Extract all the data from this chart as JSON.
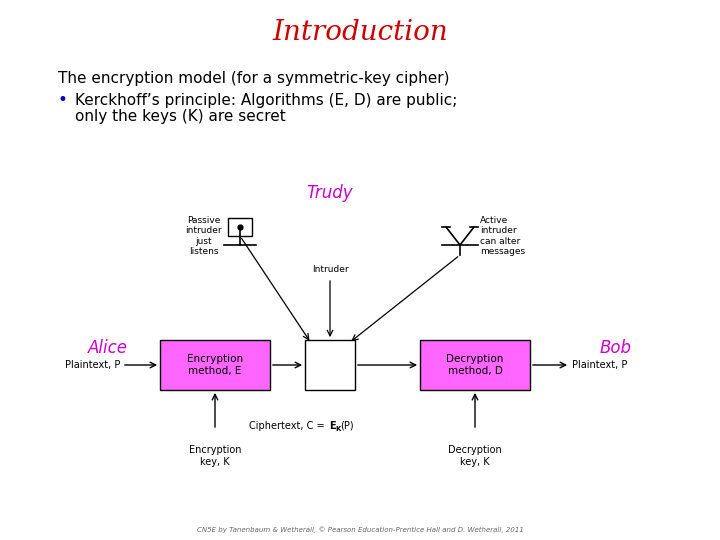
{
  "title": "Introduction",
  "title_color": "#cc0000",
  "title_fontsize": 20,
  "title_font": "serif",
  "bg_color": "#ffffff",
  "text_line1": "The encryption model (for a symmetric-key cipher)",
  "text_bullet": "Kerckhoff’s principle: Algorithms (E, D) are public;",
  "text_bullet2": "only the keys (K) are secret",
  "bullet_color": "#0000bb",
  "text_color": "#000000",
  "alice_label": "Alice",
  "bob_label": "Bob",
  "trudy_label": "Trudy",
  "name_color": "#cc00cc",
  "enc_box_label": "Encryption\nmethod, E",
  "dec_box_label": "Decryption\nmethod, D",
  "box_color": "#ff66ff",
  "box_edge_color": "#000000",
  "plaintext_left": "Plaintext, P",
  "plaintext_right": "Plaintext, P",
  "enc_key_label": "Encryption\nkey, K",
  "dec_key_label": "Decryption\nkey, K",
  "passive_label": "Passive\nintruder\njust\nlistens",
  "active_label": "Active\nintruder\ncan alter\nmessages",
  "intruder_label": "Intruder",
  "footer": "CN5E by Tanenbaum & Wetherall, © Pearson Education-Prentice Hall and D. Wetherall, 2011"
}
